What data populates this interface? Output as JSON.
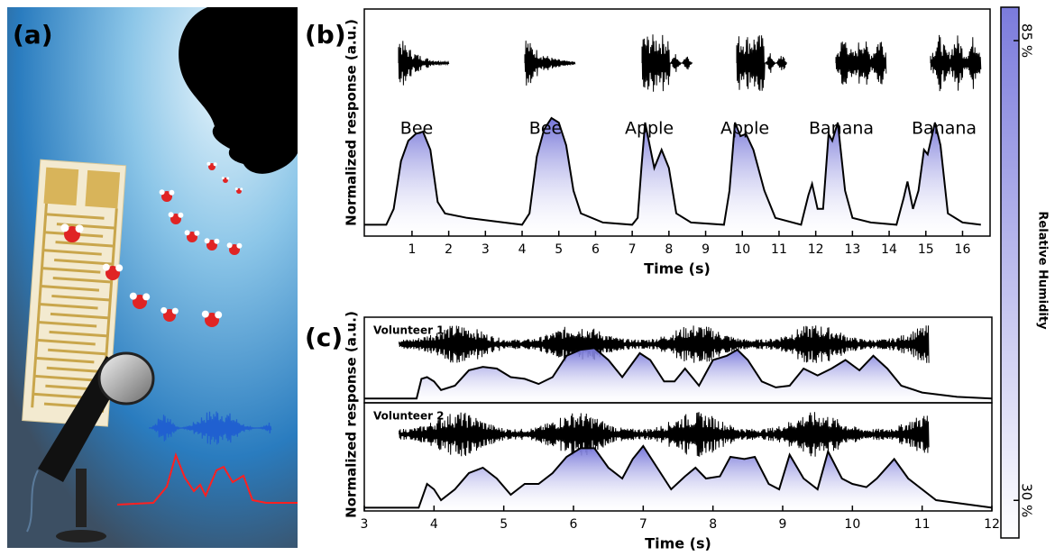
{
  "panel_labels": {
    "a": "(a)",
    "b": "(b)",
    "c": "(c)"
  },
  "chart_data": [
    {
      "type": "line",
      "y_label": "Normalized response (a.u.)",
      "x_label": "Time (s)",
      "words": [
        "Bee",
        "Bee",
        "Apple",
        "Apple",
        "Banana",
        "Banana"
      ],
      "xlim": [
        -0.3,
        16.75
      ],
      "xticks": [
        1,
        2,
        3,
        4,
        5,
        6,
        7,
        8,
        9,
        10,
        11,
        12,
        13,
        14,
        15,
        16
      ],
      "ylim": [
        0,
        1
      ],
      "color": "#000000",
      "x": [
        -0.3,
        0.3,
        0.5,
        0.7,
        0.9,
        1.1,
        1.3,
        1.5,
        1.7,
        1.9,
        2.5,
        3.5,
        4.0,
        4.2,
        4.4,
        4.6,
        4.8,
        5.0,
        5.2,
        5.4,
        5.6,
        6.2,
        7.0,
        7.15,
        7.25,
        7.35,
        7.5,
        7.6,
        7.8,
        8.0,
        8.2,
        8.6,
        9.5,
        9.65,
        9.8,
        9.95,
        10.1,
        10.3,
        10.6,
        10.9,
        11.6,
        11.8,
        11.9,
        12.05,
        12.2,
        12.35,
        12.45,
        12.6,
        12.8,
        13.0,
        13.5,
        14.2,
        14.4,
        14.5,
        14.65,
        14.8,
        14.95,
        15.05,
        15.25,
        15.4,
        15.6,
        16.0,
        16.5
      ],
      "values": [
        0.05,
        0.05,
        0.12,
        0.33,
        0.42,
        0.45,
        0.46,
        0.38,
        0.15,
        0.1,
        0.08,
        0.06,
        0.05,
        0.1,
        0.35,
        0.47,
        0.52,
        0.5,
        0.4,
        0.2,
        0.1,
        0.06,
        0.05,
        0.08,
        0.3,
        0.5,
        0.38,
        0.3,
        0.38,
        0.3,
        0.1,
        0.06,
        0.05,
        0.2,
        0.5,
        0.44,
        0.45,
        0.38,
        0.2,
        0.08,
        0.05,
        0.18,
        0.23,
        0.12,
        0.12,
        0.45,
        0.42,
        0.5,
        0.2,
        0.08,
        0.06,
        0.05,
        0.17,
        0.24,
        0.12,
        0.2,
        0.38,
        0.36,
        0.5,
        0.4,
        0.1,
        0.06,
        0.05
      ]
    },
    {
      "type": "line",
      "y_label": "Normalized response (a.u.)",
      "annotation": "Volunteer 1",
      "xlim": [
        3,
        12
      ],
      "ylim": [
        0,
        1
      ],
      "color": "#000000",
      "x": [
        3.0,
        3.75,
        3.82,
        3.9,
        4.0,
        4.1,
        4.3,
        4.5,
        4.7,
        4.9,
        5.1,
        5.3,
        5.5,
        5.7,
        5.9,
        6.1,
        6.3,
        6.5,
        6.7,
        6.95,
        7.1,
        7.3,
        7.45,
        7.6,
        7.7,
        7.8,
        8.0,
        8.2,
        8.35,
        8.5,
        8.7,
        8.9,
        9.1,
        9.3,
        9.5,
        9.7,
        9.9,
        10.1,
        10.3,
        10.5,
        10.7,
        11.0,
        11.5,
        12.0
      ],
      "values": [
        0.05,
        0.05,
        0.28,
        0.3,
        0.25,
        0.15,
        0.2,
        0.38,
        0.42,
        0.4,
        0.3,
        0.28,
        0.22,
        0.3,
        0.55,
        0.62,
        0.64,
        0.5,
        0.3,
        0.58,
        0.5,
        0.25,
        0.25,
        0.4,
        0.3,
        0.2,
        0.5,
        0.55,
        0.62,
        0.5,
        0.25,
        0.18,
        0.2,
        0.4,
        0.32,
        0.4,
        0.5,
        0.38,
        0.55,
        0.4,
        0.2,
        0.12,
        0.07,
        0.05
      ]
    },
    {
      "type": "line",
      "annotation": "Volunteer 2",
      "x_label": "Time (s)",
      "xlim": [
        3,
        12
      ],
      "xticks": [
        3,
        4,
        5,
        6,
        7,
        8,
        9,
        10,
        11,
        12
      ],
      "ylim": [
        0,
        1
      ],
      "color": "#000000",
      "x": [
        3.0,
        3.78,
        3.9,
        4.0,
        4.1,
        4.3,
        4.5,
        4.7,
        4.9,
        5.1,
        5.3,
        5.5,
        5.7,
        5.9,
        6.1,
        6.3,
        6.5,
        6.7,
        6.85,
        7.0,
        7.2,
        7.4,
        7.6,
        7.75,
        7.9,
        8.1,
        8.25,
        8.45,
        8.6,
        8.8,
        8.95,
        9.1,
        9.3,
        9.5,
        9.65,
        9.85,
        10.0,
        10.2,
        10.35,
        10.6,
        10.8,
        11.2,
        12.0
      ],
      "values": [
        0.03,
        0.03,
        0.25,
        0.2,
        0.1,
        0.2,
        0.35,
        0.4,
        0.3,
        0.15,
        0.25,
        0.25,
        0.35,
        0.5,
        0.58,
        0.58,
        0.4,
        0.3,
        0.48,
        0.6,
        0.4,
        0.2,
        0.32,
        0.4,
        0.3,
        0.32,
        0.5,
        0.48,
        0.5,
        0.25,
        0.2,
        0.52,
        0.3,
        0.2,
        0.55,
        0.3,
        0.25,
        0.22,
        0.3,
        0.48,
        0.3,
        0.1,
        0.03
      ]
    }
  ],
  "colorbar": {
    "label": "Relative Humidity",
    "lim": [
      25.5,
      89
    ],
    "ticks": [
      {
        "value": 85,
        "label": "85 %"
      },
      {
        "value": 30,
        "label": "30 %"
      }
    ]
  }
}
